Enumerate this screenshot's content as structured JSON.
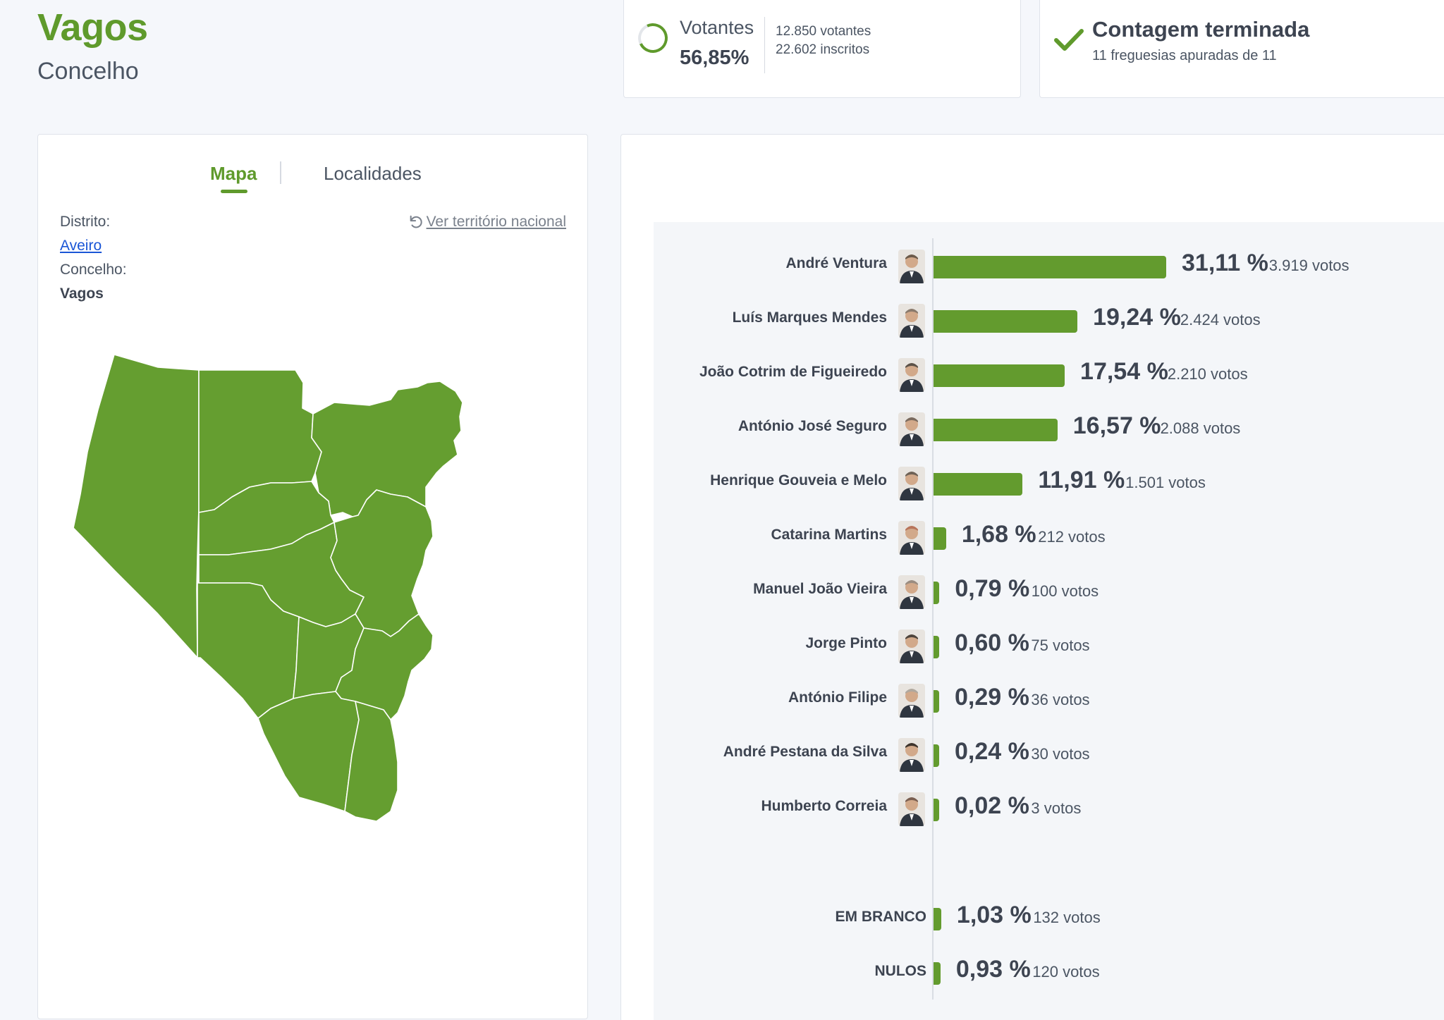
{
  "header": {
    "title": "Vagos",
    "subtitle": "Concelho"
  },
  "turnout": {
    "label": "Votantes",
    "percent": "56,85%",
    "votes": "12.850 votantes",
    "inscritos": "22.602 inscritos",
    "spinner_icon": "progress-ring-icon"
  },
  "count": {
    "title": "Contagem terminada",
    "subtitle": "11 freguesias apuradas de 11",
    "icon": "check-icon",
    "color": "#5f9a2c"
  },
  "map_panel": {
    "tabs": [
      "Mapa",
      "Localidades"
    ],
    "active_tab": "Mapa",
    "district_label": "Distrito:",
    "district_value": "Aveiro",
    "municipality_label": "Concelho:",
    "municipality_value": "Vagos",
    "reset_label": "Ver território nacional",
    "reset_icon": "undo-icon",
    "fill_color": "#659e30"
  },
  "chart_data": {
    "type": "bar",
    "orientation": "horizontal",
    "bar_color": "#639b2e",
    "candidates": [
      {
        "name": "André Ventura",
        "percent": 31.11,
        "percent_label": "31,11 %",
        "votes_label": "3.919 votos"
      },
      {
        "name": "Luís Marques Mendes",
        "percent": 19.24,
        "percent_label": "19,24 %",
        "votes_label": "2.424 votos"
      },
      {
        "name": "João Cotrim de Figueiredo",
        "percent": 17.54,
        "percent_label": "17,54 %",
        "votes_label": "2.210 votos"
      },
      {
        "name": "António José Seguro",
        "percent": 16.57,
        "percent_label": "16,57 %",
        "votes_label": "2.088 votos"
      },
      {
        "name": "Henrique Gouveia e Melo",
        "percent": 11.91,
        "percent_label": "11,91 %",
        "votes_label": "1.501 votos"
      },
      {
        "name": "Catarina Martins",
        "percent": 1.68,
        "percent_label": "1,68 %",
        "votes_label": "212 votos"
      },
      {
        "name": "Manuel João Vieira",
        "percent": 0.79,
        "percent_label": "0,79 %",
        "votes_label": "100 votos"
      },
      {
        "name": "Jorge Pinto",
        "percent": 0.6,
        "percent_label": "0,60 %",
        "votes_label": "75 votos"
      },
      {
        "name": "António Filipe",
        "percent": 0.29,
        "percent_label": "0,29 %",
        "votes_label": "36 votos"
      },
      {
        "name": "André Pestana da Silva",
        "percent": 0.24,
        "percent_label": "0,24 %",
        "votes_label": "30 votos"
      },
      {
        "name": "Humberto Correia",
        "percent": 0.02,
        "percent_label": "0,02 %",
        "votes_label": "3 votos"
      }
    ],
    "special": [
      {
        "name": "EM BRANCO",
        "percent": 1.03,
        "percent_label": "1,03 %",
        "votes_label": "132 votos"
      },
      {
        "name": "NULOS",
        "percent": 0.93,
        "percent_label": "0,93 %",
        "votes_label": "120 votos"
      }
    ]
  }
}
